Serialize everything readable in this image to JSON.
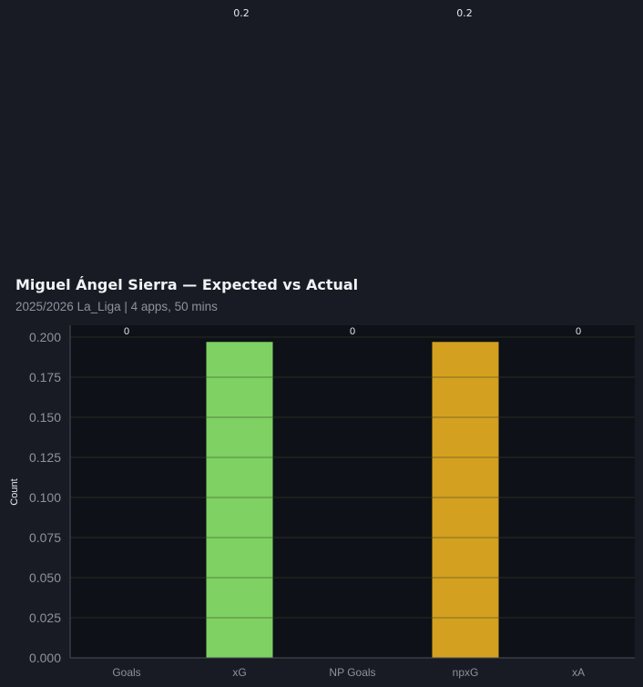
{
  "chart_data": {
    "type": "bar",
    "title": "Miguel Ángel Sierra — Expected vs Actual",
    "subtitle": "2025/2026 La_Liga | 4 apps, 50 mins",
    "ylabel": "Count",
    "categories": [
      "Goals",
      "xG",
      "NP Goals",
      "npxG",
      "xA"
    ],
    "values": [
      0,
      0.2,
      0,
      0.2,
      0
    ],
    "value_labels": [
      "0",
      "0.2",
      "0",
      "0.2",
      "0"
    ],
    "bar_colors": [
      "#7ed162",
      "#7ed162",
      "#7ed162",
      "#d4a020",
      "#d4a020"
    ],
    "ylim": [
      0,
      0.2
    ],
    "yticks": [
      "0.000",
      "0.025",
      "0.050",
      "0.075",
      "0.100",
      "0.125",
      "0.150",
      "0.175",
      "0.200"
    ],
    "grid": true,
    "legend": "none"
  },
  "colors": {
    "background": "#181b23",
    "plot_background": "#0e1117",
    "grid": "#3a5a2a",
    "text": "#e6e8ec",
    "muted": "#8d929c"
  }
}
